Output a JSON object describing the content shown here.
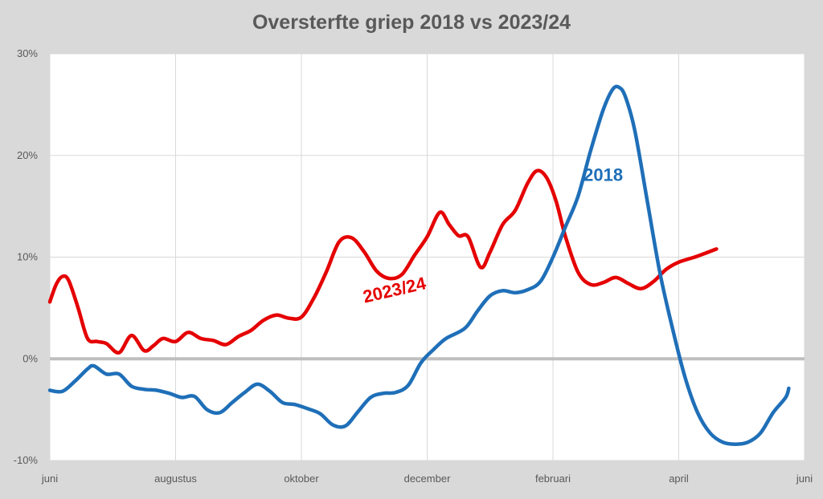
{
  "chart_data": {
    "type": "line",
    "title": "Oversterfte griep 2018 vs 2023/24",
    "xlabel": "",
    "ylabel": "",
    "ylim": [
      -10,
      30
    ],
    "xlim": [
      0,
      12
    ],
    "x_ticks": [
      {
        "pos": 0,
        "label": "juni"
      },
      {
        "pos": 2,
        "label": "augustus"
      },
      {
        "pos": 4,
        "label": "oktober"
      },
      {
        "pos": 6,
        "label": "december"
      },
      {
        "pos": 8,
        "label": "februari"
      },
      {
        "pos": 10,
        "label": "april"
      },
      {
        "pos": 12,
        "label": "juni"
      }
    ],
    "y_ticks": [
      {
        "value": -10,
        "label": "-10%"
      },
      {
        "value": 0,
        "label": "0%"
      },
      {
        "value": 10,
        "label": "10%"
      },
      {
        "value": 20,
        "label": "20%"
      },
      {
        "value": 30,
        "label": "30%"
      }
    ],
    "grid": true,
    "legend": "none",
    "series": [
      {
        "name": "2023/24",
        "color": "#e50000",
        "points": [
          [
            0.0,
            5.6
          ],
          [
            0.1,
            7.3
          ],
          [
            0.2,
            8.1
          ],
          [
            0.3,
            7.7
          ],
          [
            0.45,
            5.0
          ],
          [
            0.6,
            2.0
          ],
          [
            0.75,
            1.7
          ],
          [
            0.9,
            1.5
          ],
          [
            1.1,
            0.6
          ],
          [
            1.3,
            2.3
          ],
          [
            1.5,
            0.8
          ],
          [
            1.65,
            1.3
          ],
          [
            1.8,
            2.0
          ],
          [
            2.0,
            1.7
          ],
          [
            2.2,
            2.6
          ],
          [
            2.4,
            2.0
          ],
          [
            2.6,
            1.8
          ],
          [
            2.8,
            1.4
          ],
          [
            3.0,
            2.2
          ],
          [
            3.2,
            2.8
          ],
          [
            3.4,
            3.8
          ],
          [
            3.6,
            4.3
          ],
          [
            3.8,
            4.0
          ],
          [
            4.0,
            4.1
          ],
          [
            4.2,
            6.0
          ],
          [
            4.4,
            8.6
          ],
          [
            4.6,
            11.5
          ],
          [
            4.8,
            11.9
          ],
          [
            5.0,
            10.5
          ],
          [
            5.2,
            8.6
          ],
          [
            5.4,
            7.9
          ],
          [
            5.6,
            8.3
          ],
          [
            5.8,
            10.2
          ],
          [
            6.0,
            12.0
          ],
          [
            6.2,
            14.4
          ],
          [
            6.35,
            13.2
          ],
          [
            6.5,
            12.1
          ],
          [
            6.65,
            12.0
          ],
          [
            6.85,
            9.0
          ],
          [
            7.0,
            10.5
          ],
          [
            7.2,
            13.2
          ],
          [
            7.4,
            14.6
          ],
          [
            7.6,
            17.3
          ],
          [
            7.75,
            18.5
          ],
          [
            7.9,
            17.8
          ],
          [
            8.05,
            15.5
          ],
          [
            8.2,
            12.0
          ],
          [
            8.4,
            8.5
          ],
          [
            8.6,
            7.3
          ],
          [
            8.8,
            7.5
          ],
          [
            9.0,
            8.0
          ],
          [
            9.2,
            7.4
          ],
          [
            9.4,
            6.9
          ],
          [
            9.6,
            7.6
          ],
          [
            9.8,
            8.8
          ],
          [
            10.0,
            9.5
          ],
          [
            10.3,
            10.1
          ],
          [
            10.6,
            10.8
          ]
        ]
      },
      {
        "name": "2018",
        "color": "#1f6fb8",
        "points": [
          [
            0.0,
            -3.1
          ],
          [
            0.2,
            -3.2
          ],
          [
            0.4,
            -2.2
          ],
          [
            0.6,
            -1.0
          ],
          [
            0.7,
            -0.7
          ],
          [
            0.9,
            -1.5
          ],
          [
            1.1,
            -1.5
          ],
          [
            1.3,
            -2.7
          ],
          [
            1.5,
            -3.0
          ],
          [
            1.7,
            -3.1
          ],
          [
            1.9,
            -3.4
          ],
          [
            2.1,
            -3.8
          ],
          [
            2.3,
            -3.7
          ],
          [
            2.5,
            -5.0
          ],
          [
            2.7,
            -5.3
          ],
          [
            2.9,
            -4.3
          ],
          [
            3.1,
            -3.3
          ],
          [
            3.3,
            -2.5
          ],
          [
            3.5,
            -3.2
          ],
          [
            3.7,
            -4.3
          ],
          [
            3.9,
            -4.5
          ],
          [
            4.1,
            -4.9
          ],
          [
            4.3,
            -5.4
          ],
          [
            4.5,
            -6.5
          ],
          [
            4.7,
            -6.6
          ],
          [
            4.9,
            -5.2
          ],
          [
            5.1,
            -3.8
          ],
          [
            5.3,
            -3.4
          ],
          [
            5.5,
            -3.3
          ],
          [
            5.7,
            -2.6
          ],
          [
            5.9,
            -0.4
          ],
          [
            6.1,
            0.9
          ],
          [
            6.3,
            2.0
          ],
          [
            6.6,
            3.0
          ],
          [
            6.8,
            4.7
          ],
          [
            7.0,
            6.2
          ],
          [
            7.2,
            6.7
          ],
          [
            7.4,
            6.5
          ],
          [
            7.6,
            6.8
          ],
          [
            7.8,
            7.6
          ],
          [
            8.0,
            10.0
          ],
          [
            8.2,
            13.0
          ],
          [
            8.4,
            16.0
          ],
          [
            8.6,
            20.5
          ],
          [
            8.8,
            24.5
          ],
          [
            8.95,
            26.5
          ],
          [
            9.05,
            26.7
          ],
          [
            9.15,
            25.8
          ],
          [
            9.3,
            22.5
          ],
          [
            9.5,
            15.5
          ],
          [
            9.7,
            8.5
          ],
          [
            9.9,
            3.0
          ],
          [
            10.1,
            -1.8
          ],
          [
            10.3,
            -5.3
          ],
          [
            10.5,
            -7.3
          ],
          [
            10.7,
            -8.2
          ],
          [
            10.9,
            -8.4
          ],
          [
            11.1,
            -8.2
          ],
          [
            11.3,
            -7.3
          ],
          [
            11.5,
            -5.3
          ],
          [
            11.7,
            -3.8
          ],
          [
            11.75,
            -2.9
          ]
        ]
      }
    ],
    "annotations": [
      {
        "text": "2023/24",
        "x": 5.5,
        "y": 6.2,
        "color": "#e50000",
        "rotate": -13
      },
      {
        "text": "2018",
        "x": 8.8,
        "y": 17.5,
        "color": "#1f6fb8",
        "rotate": 0
      }
    ]
  }
}
